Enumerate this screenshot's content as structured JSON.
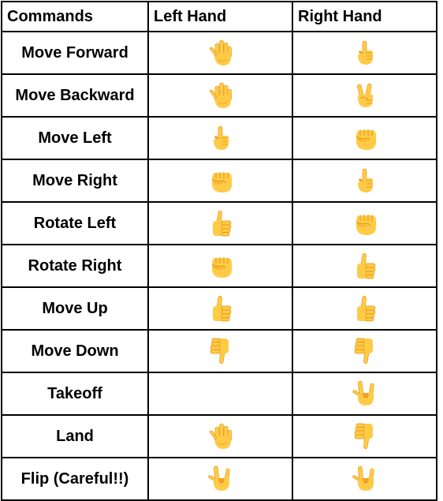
{
  "table": {
    "headers": [
      "Commands",
      "Left Hand",
      "Right Hand"
    ],
    "rows": [
      {
        "command": "Move Forward",
        "left": "open-hand",
        "right": "index-up"
      },
      {
        "command": "Move Backward",
        "left": "open-hand",
        "right": "victory"
      },
      {
        "command": "Move Left",
        "left": "index-up",
        "right": "fist"
      },
      {
        "command": "Move Right",
        "left": "fist",
        "right": "index-up"
      },
      {
        "command": "Rotate Left",
        "left": "thumbs-up",
        "right": "fist"
      },
      {
        "command": "Rotate Right",
        "left": "fist",
        "right": "thumbs-up"
      },
      {
        "command": "Move Up",
        "left": "thumbs-up",
        "right": "thumbs-up"
      },
      {
        "command": "Move Down",
        "left": "thumbs-down",
        "right": "thumbs-down"
      },
      {
        "command": "Takeoff",
        "left": "",
        "right": "rock-on"
      },
      {
        "command": "Land",
        "left": "open-hand",
        "right": "thumbs-down"
      },
      {
        "command": "Flip (Careful!!)",
        "left": "rock-on",
        "right": "rock-on"
      }
    ]
  },
  "colors": {
    "skin": "#FFCB47",
    "skin_shade": "#F2A825",
    "line": "#E28F0E",
    "border": "#000000"
  }
}
